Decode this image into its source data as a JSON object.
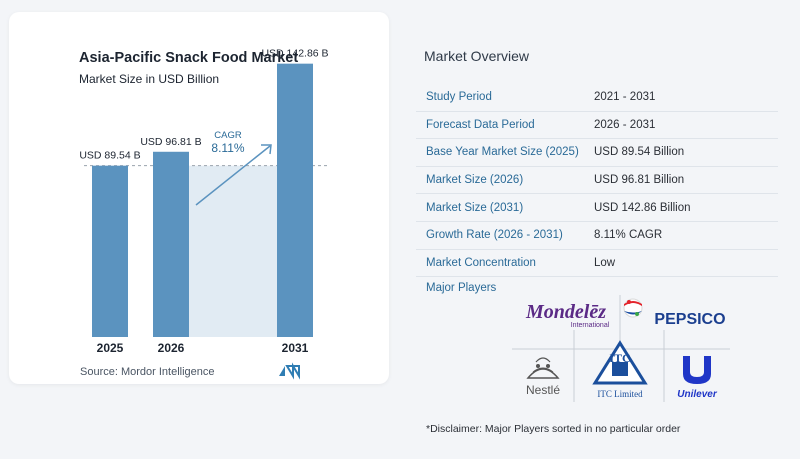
{
  "chart_data": {
    "type": "bar",
    "title": "Asia-Pacific Snack Food Market",
    "subtitle": "Market Size in USD Billion",
    "categories": [
      "2025",
      "2026",
      "2031"
    ],
    "values": [
      89.54,
      96.81,
      142.86
    ],
    "data_labels": [
      "USD 89.54 B",
      "USD 96.81 B",
      "USD 142.86 B"
    ],
    "annotation": {
      "label": "CAGR",
      "value": "8.11%"
    },
    "ylim": [
      0,
      150
    ],
    "grid": false,
    "colors": {
      "bar": "#5b93bf",
      "shade": "#e1ebf3",
      "arrow": "#5b93bf",
      "cagr": "#2a6a97"
    }
  },
  "source": "Source:  Mordor Intelligence",
  "overview": {
    "title": "Market Overview",
    "rows": [
      {
        "label": "Study Period",
        "value": "2021 - 2031"
      },
      {
        "label": "Forecast Data Period",
        "value": "2026 - 2031"
      },
      {
        "label": "Base Year Market Size (2025)",
        "value": "USD 89.54 Billion"
      },
      {
        "label": "Market Size (2026)",
        "value": "USD 96.81 Billion"
      },
      {
        "label": "Market Size (2031)",
        "value": "USD 142.86 Billion"
      },
      {
        "label": "Growth Rate (2026 - 2031)",
        "value": "8.11% CAGR"
      },
      {
        "label": "Market Concentration",
        "value": "Low"
      }
    ]
  },
  "players": {
    "label": "Major Players",
    "logos": [
      {
        "name": "Mondelēz",
        "sub": "International"
      },
      {
        "name": "PEPSICO"
      },
      {
        "name": "Nestlé"
      },
      {
        "name": "ITC",
        "sub": "ITC Limited"
      },
      {
        "name": "Unilever"
      }
    ]
  },
  "disclaimer": "*Disclaimer: Major Players sorted in no particular order"
}
